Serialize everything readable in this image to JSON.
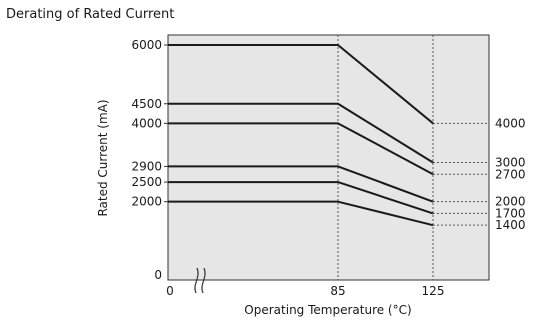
{
  "chart_data": {
    "type": "line",
    "title": "Derating of Rated Current",
    "xlabel": "Operating Temperature (°C)",
    "ylabel": "Rated Current (mA)",
    "xlim": [
      0,
      150
    ],
    "ylim": [
      0,
      6600
    ],
    "x_axis_break": true,
    "x_ticks": [
      0,
      85,
      125
    ],
    "y_ticks": [
      0,
      2000,
      2500,
      2900,
      4000,
      4500,
      6000
    ],
    "right_labels": [
      4000,
      3000,
      2700,
      2000,
      1700,
      1400
    ],
    "grid": "dashed at x=85 and x=125",
    "series": [
      {
        "x": [
          0,
          85,
          125
        ],
        "y": [
          6000,
          6000,
          4000
        ]
      },
      {
        "x": [
          0,
          85,
          125
        ],
        "y": [
          4500,
          4500,
          3000
        ]
      },
      {
        "x": [
          0,
          85,
          125
        ],
        "y": [
          4000,
          4000,
          2700
        ]
      },
      {
        "x": [
          0,
          85,
          125
        ],
        "y": [
          2900,
          2900,
          2000
        ]
      },
      {
        "x": [
          0,
          85,
          125
        ],
        "y": [
          2500,
          2500,
          1700
        ]
      },
      {
        "x": [
          0,
          85,
          125
        ],
        "y": [
          2000,
          2000,
          1400
        ]
      }
    ]
  },
  "colors": {
    "plot_bg": "#e6e6e6",
    "line": "#1a1a1a",
    "frame": "#333333"
  }
}
